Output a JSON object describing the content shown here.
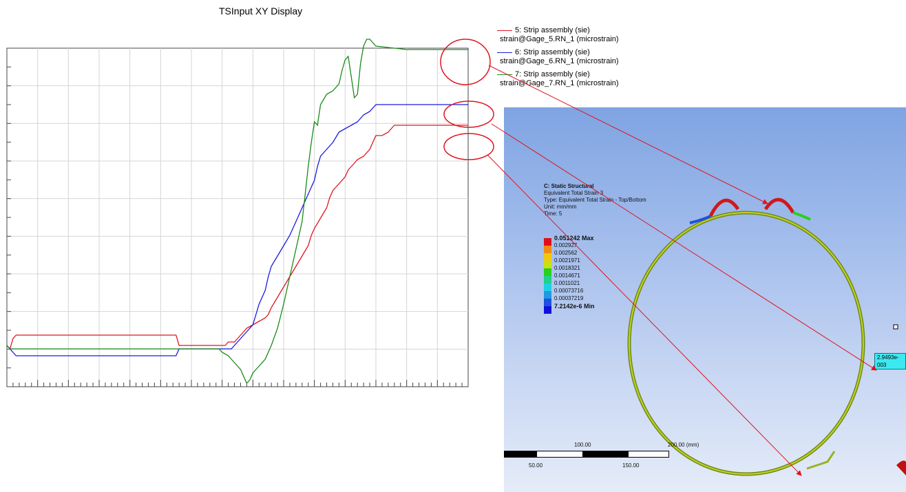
{
  "chart_data": {
    "type": "line",
    "title": "TSInput XY Display",
    "xlabel": "",
    "ylabel": "",
    "grid": true,
    "legend_position": "top-right",
    "series": [
      {
        "name": "5: Strip assembly (sie)",
        "name2": "strain@Gage_5.RN_1 (microstrain)",
        "color": "#e0141e",
        "values": [
          [
            0,
            0
          ],
          [
            1,
            -1
          ],
          [
            2,
            2
          ],
          [
            3,
            3
          ],
          [
            4,
            3
          ],
          [
            40,
            3
          ],
          [
            55,
            3
          ],
          [
            56,
            0
          ],
          [
            60,
            0
          ],
          [
            70,
            0
          ],
          [
            71,
            0
          ],
          [
            72,
            1
          ],
          [
            74,
            1
          ],
          [
            75,
            2
          ],
          [
            76,
            3
          ],
          [
            77,
            4
          ],
          [
            78,
            5
          ],
          [
            80,
            6
          ],
          [
            82,
            7
          ],
          [
            84,
            8
          ],
          [
            85,
            9
          ],
          [
            86,
            11
          ],
          [
            88,
            14
          ],
          [
            90,
            17
          ],
          [
            92,
            20
          ],
          [
            94,
            23
          ],
          [
            96,
            26
          ],
          [
            98,
            29
          ],
          [
            99,
            32
          ],
          [
            100,
            34
          ],
          [
            102,
            37
          ],
          [
            104,
            40
          ],
          [
            105,
            43
          ],
          [
            106,
            45
          ],
          [
            108,
            47
          ],
          [
            110,
            49
          ],
          [
            111,
            51
          ],
          [
            112,
            52
          ],
          [
            114,
            54
          ],
          [
            116,
            55
          ],
          [
            118,
            57
          ],
          [
            119,
            59
          ],
          [
            120,
            61
          ],
          [
            122,
            61
          ],
          [
            124,
            62
          ],
          [
            125,
            63
          ],
          [
            126,
            64
          ],
          [
            130,
            64
          ],
          [
            150,
            64
          ]
        ]
      },
      {
        "name": "6: Strip assembly (sie)",
        "name2": "strain@Gage_6.RN_1 (microstrain)",
        "color": "#1a1ae0",
        "values": [
          [
            0,
            0
          ],
          [
            1,
            -1
          ],
          [
            2,
            -2
          ],
          [
            3,
            -3
          ],
          [
            4,
            -3
          ],
          [
            40,
            -3
          ],
          [
            55,
            -3
          ],
          [
            56,
            -1
          ],
          [
            60,
            -1
          ],
          [
            70,
            -1
          ],
          [
            71,
            -1
          ],
          [
            73,
            -1
          ],
          [
            74,
            0
          ],
          [
            75,
            1
          ],
          [
            76,
            2
          ],
          [
            77,
            3
          ],
          [
            78,
            4
          ],
          [
            80,
            6
          ],
          [
            81,
            9
          ],
          [
            82,
            12
          ],
          [
            84,
            16
          ],
          [
            85,
            20
          ],
          [
            86,
            23
          ],
          [
            88,
            26
          ],
          [
            90,
            29
          ],
          [
            92,
            32
          ],
          [
            94,
            36
          ],
          [
            96,
            40
          ],
          [
            98,
            44
          ],
          [
            100,
            48
          ],
          [
            101,
            52
          ],
          [
            102,
            55
          ],
          [
            104,
            57
          ],
          [
            106,
            59
          ],
          [
            108,
            62
          ],
          [
            110,
            63
          ],
          [
            112,
            64
          ],
          [
            114,
            65
          ],
          [
            115,
            66
          ],
          [
            116,
            67
          ],
          [
            118,
            68
          ],
          [
            120,
            70
          ],
          [
            122,
            70
          ],
          [
            150,
            70
          ]
        ]
      },
      {
        "name": "7: Strip assembly (sie)",
        "name2": "strain@Gage_7.RN_1 (microstrain)",
        "color": "#1a8a1a",
        "values": [
          [
            0,
            0
          ],
          [
            1,
            -1
          ],
          [
            2,
            -1
          ],
          [
            3,
            -1
          ],
          [
            40,
            -1
          ],
          [
            55,
            -1
          ],
          [
            56,
            -1
          ],
          [
            60,
            -1
          ],
          [
            69,
            -1
          ],
          [
            70,
            -2
          ],
          [
            72,
            -3
          ],
          [
            74,
            -5
          ],
          [
            76,
            -7
          ],
          [
            77,
            -9
          ],
          [
            78,
            -11
          ],
          [
            79,
            -10
          ],
          [
            80,
            -8
          ],
          [
            82,
            -6
          ],
          [
            84,
            -4
          ],
          [
            86,
            0
          ],
          [
            88,
            5
          ],
          [
            90,
            12
          ],
          [
            92,
            20
          ],
          [
            94,
            28
          ],
          [
            96,
            36
          ],
          [
            97,
            44
          ],
          [
            98,
            52
          ],
          [
            99,
            59
          ],
          [
            100,
            65
          ],
          [
            101,
            64
          ],
          [
            102,
            70
          ],
          [
            104,
            73
          ],
          [
            106,
            74
          ],
          [
            108,
            76
          ],
          [
            109,
            80
          ],
          [
            110,
            83
          ],
          [
            111,
            84
          ],
          [
            112,
            78
          ],
          [
            113,
            72
          ],
          [
            114,
            73
          ],
          [
            115,
            82
          ],
          [
            116,
            87
          ],
          [
            117,
            89
          ],
          [
            118,
            89
          ],
          [
            120,
            87
          ],
          [
            130,
            86
          ],
          [
            150,
            86
          ]
        ]
      }
    ],
    "xlim": [
      0,
      150
    ],
    "ylim": [
      -12,
      90
    ]
  },
  "fea": {
    "title": "C: Static Structural",
    "result": "Equivalent Total Strain 3",
    "type": "Type: Equivalent Total Strain - Top/Bottom",
    "unit": "Unit: mm/mm",
    "time": "Time: 5",
    "legend": [
      {
        "label": "0.051242 Max",
        "color": "#e0101a",
        "bold": true
      },
      {
        "label": "0.002927",
        "color": "#f08c10",
        "bold": false
      },
      {
        "label": "0.002562",
        "color": "#f0c810",
        "bold": false
      },
      {
        "label": "0.0021971",
        "color": "#c8e010",
        "bold": false
      },
      {
        "label": "0.0018321",
        "color": "#28d01a",
        "bold": false
      },
      {
        "label": "0.0014671",
        "color": "#20d08c",
        "bold": false
      },
      {
        "label": "0.0011021",
        "color": "#20d0e0",
        "bold": false
      },
      {
        "label": "0.00073716",
        "color": "#209ae0",
        "bold": false
      },
      {
        "label": "0.00037219",
        "color": "#2050e0",
        "bold": false
      },
      {
        "label": "7.2142e-6 Min",
        "color": "#1010d8",
        "bold": true
      }
    ],
    "probe": "2.9493e-003",
    "scale": {
      "top_labels": [
        "100.00",
        "200.00 (mm)"
      ],
      "bottom_labels": [
        "50.00",
        "150.00"
      ]
    }
  }
}
